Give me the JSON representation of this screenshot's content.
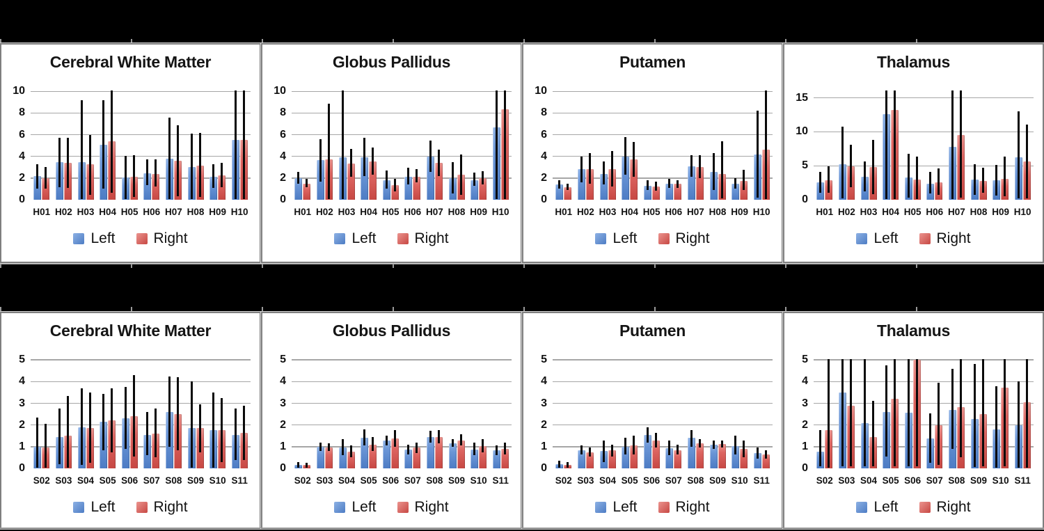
{
  "page": {
    "background": "#000000",
    "panel_background": "#ffffff",
    "panel_border": "#7f7f7f",
    "gridline_color": "#a6a6a6",
    "error_bar_color": "#0a0a0a",
    "left_color": "#5b8ad2",
    "right_color": "#d95a55"
  },
  "legend": {
    "left_label": "Left",
    "right_label": "Right"
  },
  "chart_data": [
    {
      "type": "bar",
      "title": "Cerebral White Matter",
      "row": "top",
      "categories": [
        "H01",
        "H02",
        "H03",
        "H04",
        "H05",
        "H06",
        "H07",
        "H08",
        "H09",
        "H10"
      ],
      "yticks": [
        0,
        2,
        4,
        6,
        8,
        10
      ],
      "ylim": [
        0,
        10.15
      ],
      "grid": true,
      "legend_position": "bottom",
      "series": [
        {
          "name": "Left",
          "color": "#5b8ad2",
          "values": [
            2.2,
            3.45,
            3.45,
            5.1,
            2.05,
            2.45,
            3.8,
            3.05,
            2.15,
            5.5
          ],
          "err_low": [
            1.0,
            1.15,
            0.05,
            1.0,
            0.05,
            1.35,
            0.05,
            0.05,
            1.1,
            0.05
          ],
          "err_high": [
            3.3,
            5.7,
            9.2,
            9.2,
            4.05,
            3.7,
            7.6,
            6.1,
            3.3,
            10.1
          ]
        },
        {
          "name": "Right",
          "color": "#d95a55",
          "values": [
            2.0,
            3.4,
            3.25,
            5.4,
            2.1,
            2.4,
            3.6,
            3.15,
            2.25,
            5.5
          ],
          "err_low": [
            1.05,
            1.1,
            0.45,
            0.65,
            0.25,
            1.25,
            0.3,
            0.25,
            1.15,
            0.05
          ],
          "err_high": [
            3.05,
            5.7,
            6.0,
            10.1,
            4.1,
            3.7,
            6.9,
            6.2,
            3.4,
            10.1
          ]
        }
      ]
    },
    {
      "type": "bar",
      "title": "Globus Pallidus",
      "row": "top",
      "categories": [
        "H01",
        "H02",
        "H03",
        "H04",
        "H05",
        "H06",
        "H07",
        "H08",
        "H09",
        "H10"
      ],
      "yticks": [
        0,
        2,
        4,
        6,
        8,
        10
      ],
      "ylim": [
        0,
        10.15
      ],
      "grid": true,
      "legend_position": "bottom",
      "series": [
        {
          "name": "Left",
          "color": "#5b8ad2",
          "values": [
            2.0,
            3.65,
            3.95,
            3.9,
            1.8,
            2.1,
            4.0,
            2.0,
            1.8,
            6.65
          ],
          "err_low": [
            1.5,
            1.7,
            0.05,
            2.2,
            1.0,
            1.4,
            2.6,
            0.6,
            1.3,
            0.05
          ],
          "err_high": [
            2.55,
            5.6,
            10.1,
            5.7,
            2.7,
            2.95,
            5.45,
            3.5,
            2.5,
            10.1
          ]
        },
        {
          "name": "Right",
          "color": "#d95a55",
          "values": [
            1.5,
            3.75,
            3.35,
            3.55,
            1.35,
            2.15,
            3.4,
            2.3,
            2.0,
            8.35
          ],
          "err_low": [
            1.15,
            0.05,
            2.1,
            2.3,
            0.8,
            1.6,
            2.2,
            0.45,
            1.4,
            0.05
          ],
          "err_high": [
            1.9,
            8.85,
            4.7,
            4.8,
            1.9,
            2.85,
            4.6,
            4.2,
            2.65,
            10.1
          ]
        }
      ]
    },
    {
      "type": "bar",
      "title": "Putamen",
      "row": "top",
      "categories": [
        "H01",
        "H02",
        "H03",
        "H04",
        "H05",
        "H06",
        "H07",
        "H08",
        "H09",
        "H10"
      ],
      "yticks": [
        0,
        2,
        4,
        6,
        8,
        10
      ],
      "ylim": [
        0,
        10.15
      ],
      "grid": true,
      "legend_position": "bottom",
      "series": [
        {
          "name": "Left",
          "color": "#5b8ad2",
          "values": [
            1.4,
            2.8,
            2.4,
            4.0,
            1.3,
            1.5,
            3.1,
            2.55,
            1.45,
            4.15
          ],
          "err_low": [
            1.0,
            1.6,
            1.4,
            2.3,
            0.9,
            1.1,
            2.1,
            0.9,
            1.0,
            0.2
          ],
          "err_high": [
            1.8,
            4.0,
            3.55,
            5.8,
            1.8,
            1.9,
            4.1,
            4.3,
            2.0,
            8.2
          ]
        },
        {
          "name": "Right",
          "color": "#d95a55",
          "values": [
            1.15,
            2.85,
            2.85,
            3.7,
            1.25,
            1.45,
            3.05,
            2.35,
            1.75,
            4.6
          ],
          "err_low": [
            0.9,
            1.5,
            1.25,
            2.1,
            0.85,
            1.1,
            2.0,
            0.1,
            0.9,
            0.05
          ],
          "err_high": [
            1.5,
            4.3,
            4.5,
            5.35,
            1.7,
            1.8,
            4.1,
            5.4,
            2.75,
            10.1
          ]
        }
      ]
    },
    {
      "type": "bar",
      "title": "Thalamus",
      "row": "top",
      "categories": [
        "H01",
        "H02",
        "H03",
        "H04",
        "H05",
        "H06",
        "H07",
        "H08",
        "H09",
        "H10"
      ],
      "yticks": [
        0,
        5,
        10,
        15
      ],
      "ylim": [
        0,
        16.2
      ],
      "grid": true,
      "legend_position": "bottom",
      "series": [
        {
          "name": "Left",
          "color": "#5b8ad2",
          "values": [
            2.6,
            5.2,
            3.4,
            12.6,
            3.3,
            2.4,
            7.8,
            3.0,
            2.9,
            6.3
          ],
          "err_low": [
            1.0,
            0.2,
            1.2,
            0.1,
            0.3,
            0.9,
            0.1,
            0.7,
            0.6,
            0.2
          ],
          "err_high": [
            4.1,
            10.8,
            5.6,
            16.1,
            6.8,
            4.1,
            16.1,
            5.2,
            5.1,
            13.0
          ]
        },
        {
          "name": "Right",
          "color": "#d95a55",
          "values": [
            2.9,
            4.9,
            4.8,
            13.2,
            3.0,
            2.6,
            9.5,
            2.8,
            3.1,
            5.6
          ],
          "err_low": [
            1.0,
            1.8,
            0.8,
            0.1,
            0.1,
            0.7,
            0.3,
            1.0,
            0.5,
            0.2
          ],
          "err_high": [
            4.9,
            8.1,
            8.8,
            16.1,
            6.4,
            4.6,
            16.1,
            4.7,
            6.4,
            11.1
          ]
        }
      ]
    },
    {
      "type": "bar",
      "title": "Cerebral White Matter",
      "row": "bottom",
      "categories": [
        "S02",
        "S03",
        "S04",
        "S05",
        "S06",
        "S07",
        "S08",
        "S09",
        "S10",
        "S11"
      ],
      "yticks": [
        0,
        1,
        2,
        3,
        4,
        5
      ],
      "ylim": [
        0,
        5.07
      ],
      "grid": true,
      "legend_position": "bottom",
      "series": [
        {
          "name": "Left",
          "color": "#5b8ad2",
          "values": [
            1.0,
            1.45,
            1.9,
            2.15,
            2.3,
            1.55,
            2.6,
            1.85,
            1.75,
            1.55
          ],
          "err_low": [
            0.03,
            0.2,
            0.15,
            0.85,
            0.9,
            0.6,
            1.0,
            0.03,
            0.03,
            0.4
          ],
          "err_high": [
            2.35,
            2.75,
            3.7,
            3.45,
            3.75,
            2.6,
            4.25,
            4.0,
            3.5,
            2.75
          ]
        },
        {
          "name": "Right",
          "color": "#d95a55",
          "values": [
            0.95,
            1.5,
            1.85,
            2.2,
            2.4,
            1.6,
            2.5,
            1.85,
            1.75,
            1.65
          ],
          "err_low": [
            0.03,
            0.03,
            0.25,
            0.75,
            0.55,
            0.5,
            0.85,
            0.75,
            0.3,
            0.4
          ],
          "err_high": [
            2.05,
            3.35,
            3.5,
            3.7,
            4.3,
            2.75,
            4.2,
            2.95,
            3.25,
            2.9
          ]
        }
      ]
    },
    {
      "type": "bar",
      "title": "Globus Pallidus",
      "row": "bottom",
      "categories": [
        "S02",
        "S03",
        "S04",
        "S05",
        "S06",
        "S07",
        "S08",
        "S09",
        "S10",
        "S11"
      ],
      "yticks": [
        0,
        1,
        2,
        3,
        4,
        5
      ],
      "ylim": [
        0,
        5.07
      ],
      "grid": true,
      "legend_position": "bottom",
      "series": [
        {
          "name": "Left",
          "color": "#5b8ad2",
          "values": [
            0.15,
            1.0,
            0.95,
            1.42,
            1.28,
            0.88,
            1.45,
            1.15,
            0.88,
            0.82
          ],
          "err_low": [
            0.02,
            0.8,
            0.6,
            1.05,
            1.05,
            0.65,
            1.2,
            1.0,
            0.6,
            0.62
          ],
          "err_high": [
            0.3,
            1.2,
            1.35,
            1.8,
            1.5,
            1.1,
            1.72,
            1.35,
            1.2,
            1.05
          ]
        },
        {
          "name": "Right",
          "color": "#d95a55",
          "values": [
            0.15,
            0.95,
            0.78,
            1.1,
            1.37,
            0.95,
            1.45,
            1.3,
            1.03,
            0.9
          ],
          "err_low": [
            0.02,
            0.8,
            0.5,
            0.8,
            1.0,
            0.7,
            1.15,
            1.05,
            0.75,
            0.65
          ],
          "err_high": [
            0.25,
            1.15,
            1.05,
            1.45,
            1.75,
            1.2,
            1.75,
            1.58,
            1.35,
            1.18
          ]
        }
      ]
    },
    {
      "type": "bar",
      "title": "Putamen",
      "row": "bottom",
      "categories": [
        "S02",
        "S03",
        "S04",
        "S05",
        "S06",
        "S07",
        "S08",
        "S09",
        "S10",
        "S11"
      ],
      "yticks": [
        0,
        1,
        2,
        3,
        4,
        5
      ],
      "ylim": [
        0,
        5.07
      ],
      "grid": true,
      "legend_position": "bottom",
      "series": [
        {
          "name": "Left",
          "color": "#5b8ad2",
          "values": [
            0.2,
            0.85,
            0.8,
            1.0,
            1.55,
            0.92,
            1.4,
            1.08,
            1.03,
            0.72
          ],
          "err_low": [
            0.02,
            0.65,
            0.3,
            0.65,
            1.2,
            0.6,
            1.0,
            0.9,
            0.65,
            0.45
          ],
          "err_high": [
            0.35,
            1.05,
            1.3,
            1.4,
            1.9,
            1.3,
            1.75,
            1.3,
            1.5,
            0.95
          ]
        },
        {
          "name": "Right",
          "color": "#d95a55",
          "values": [
            0.15,
            0.75,
            0.82,
            1.07,
            1.3,
            0.85,
            1.15,
            1.12,
            0.9,
            0.65
          ],
          "err_low": [
            0.02,
            0.55,
            0.55,
            0.65,
            0.95,
            0.65,
            0.95,
            0.95,
            0.5,
            0.45
          ],
          "err_high": [
            0.3,
            0.95,
            1.1,
            1.5,
            1.65,
            1.1,
            1.35,
            1.3,
            1.3,
            0.85
          ]
        }
      ]
    },
    {
      "type": "bar",
      "title": "Thalamus",
      "row": "bottom",
      "categories": [
        "S02",
        "S03",
        "S04",
        "S05",
        "S06",
        "S07",
        "S08",
        "S09",
        "S10",
        "S11"
      ],
      "yticks": [
        0,
        1,
        2,
        3,
        4,
        5
      ],
      "ylim": [
        0,
        5.07
      ],
      "grid": true,
      "legend_position": "bottom",
      "series": [
        {
          "name": "Left",
          "color": "#5b8ad2",
          "values": [
            0.78,
            3.5,
            2.1,
            2.6,
            2.58,
            1.38,
            2.7,
            2.27,
            1.8,
            2.0
          ],
          "err_low": [
            0.1,
            0.1,
            0.1,
            0.55,
            0.1,
            0.25,
            0.9,
            0.05,
            0.02,
            0.02
          ],
          "err_high": [
            1.75,
            5.05,
            5.05,
            4.75,
            5.05,
            2.55,
            4.6,
            4.8,
            3.8,
            4.0
          ]
        },
        {
          "name": "Right",
          "color": "#d95a55",
          "values": [
            1.75,
            2.9,
            1.43,
            3.22,
            5.0,
            2.0,
            2.82,
            2.5,
            3.73,
            3.05
          ],
          "err_low": [
            0.02,
            0.1,
            0.1,
            0.1,
            0.1,
            0.15,
            0.5,
            0.1,
            0.1,
            0.02
          ],
          "err_high": [
            5.05,
            5.05,
            3.1,
            5.05,
            5.05,
            3.95,
            5.05,
            5.05,
            5.05,
            5.05
          ]
        }
      ]
    }
  ]
}
